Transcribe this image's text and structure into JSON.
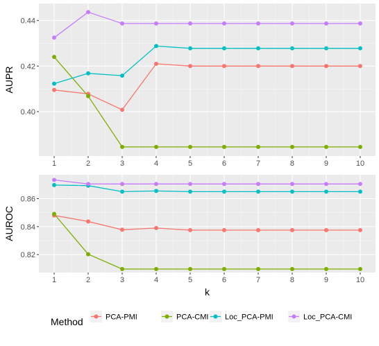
{
  "chart_data": {
    "type": "line",
    "xlabel": "k",
    "x": [
      1,
      2,
      3,
      4,
      5,
      6,
      7,
      8,
      9,
      10
    ],
    "legend": {
      "title": "Method",
      "position": "bottom",
      "entries": [
        "PCA-PMI",
        "PCA-CMI",
        "Loc_PCA-PMI",
        "Loc_PCA-CMI"
      ]
    },
    "colors": {
      "PCA-PMI": "#F8766D",
      "PCA-CMI": "#7CAE00",
      "Loc_PCA-PMI": "#00BFC4",
      "Loc_PCA-CMI": "#C77CFF"
    },
    "grid": true,
    "panels": [
      {
        "ylabel": "AUPR",
        "ylim": [
          0.3805,
          0.4475
        ],
        "yticks": [
          0.4,
          0.42,
          0.44
        ],
        "ytick_labels": [
          "0.40",
          "0.42",
          "0.44"
        ],
        "series": [
          {
            "name": "PCA-PMI",
            "values": [
              0.4095,
              0.4078,
              0.4008,
              0.421,
              0.42,
              0.42,
              0.42,
              0.42,
              0.42,
              0.42
            ]
          },
          {
            "name": "PCA-CMI",
            "values": [
              0.424,
              0.4068,
              0.3845,
              0.3845,
              0.3845,
              0.3845,
              0.3845,
              0.3845,
              0.3845,
              0.3845
            ]
          },
          {
            "name": "Loc_PCA-PMI",
            "values": [
              0.4123,
              0.4168,
              0.4158,
              0.4288,
              0.4278,
              0.4278,
              0.4278,
              0.4278,
              0.4278,
              0.4278
            ]
          },
          {
            "name": "Loc_PCA-CMI",
            "values": [
              0.4325,
              0.4437,
              0.4387,
              0.4387,
              0.4387,
              0.4387,
              0.4387,
              0.4387,
              0.4387,
              0.4387
            ]
          }
        ]
      },
      {
        "ylabel": "AUROC",
        "ylim": [
          0.8072,
          0.8771
        ],
        "yticks": [
          0.82,
          0.84,
          0.86
        ],
        "ytick_labels": [
          "0.82",
          "0.84",
          "0.86"
        ],
        "series": [
          {
            "name": "PCA-PMI",
            "values": [
              0.848,
              0.8437,
              0.8378,
              0.839,
              0.8375,
              0.8375,
              0.8375,
              0.8375,
              0.8375,
              0.8375
            ]
          },
          {
            "name": "PCA-CMI",
            "values": [
              0.8491,
              0.8203,
              0.8097,
              0.8097,
              0.8097,
              0.8097,
              0.8097,
              0.8097,
              0.8097,
              0.8097
            ]
          },
          {
            "name": "Loc_PCA-PMI",
            "values": [
              0.8697,
              0.8693,
              0.865,
              0.8655,
              0.865,
              0.865,
              0.865,
              0.865,
              0.865,
              0.865
            ]
          },
          {
            "name": "Loc_PCA-CMI",
            "values": [
              0.8734,
              0.8705,
              0.8705,
              0.8705,
              0.8705,
              0.8705,
              0.8705,
              0.8705,
              0.8705,
              0.8705
            ]
          }
        ]
      }
    ]
  }
}
